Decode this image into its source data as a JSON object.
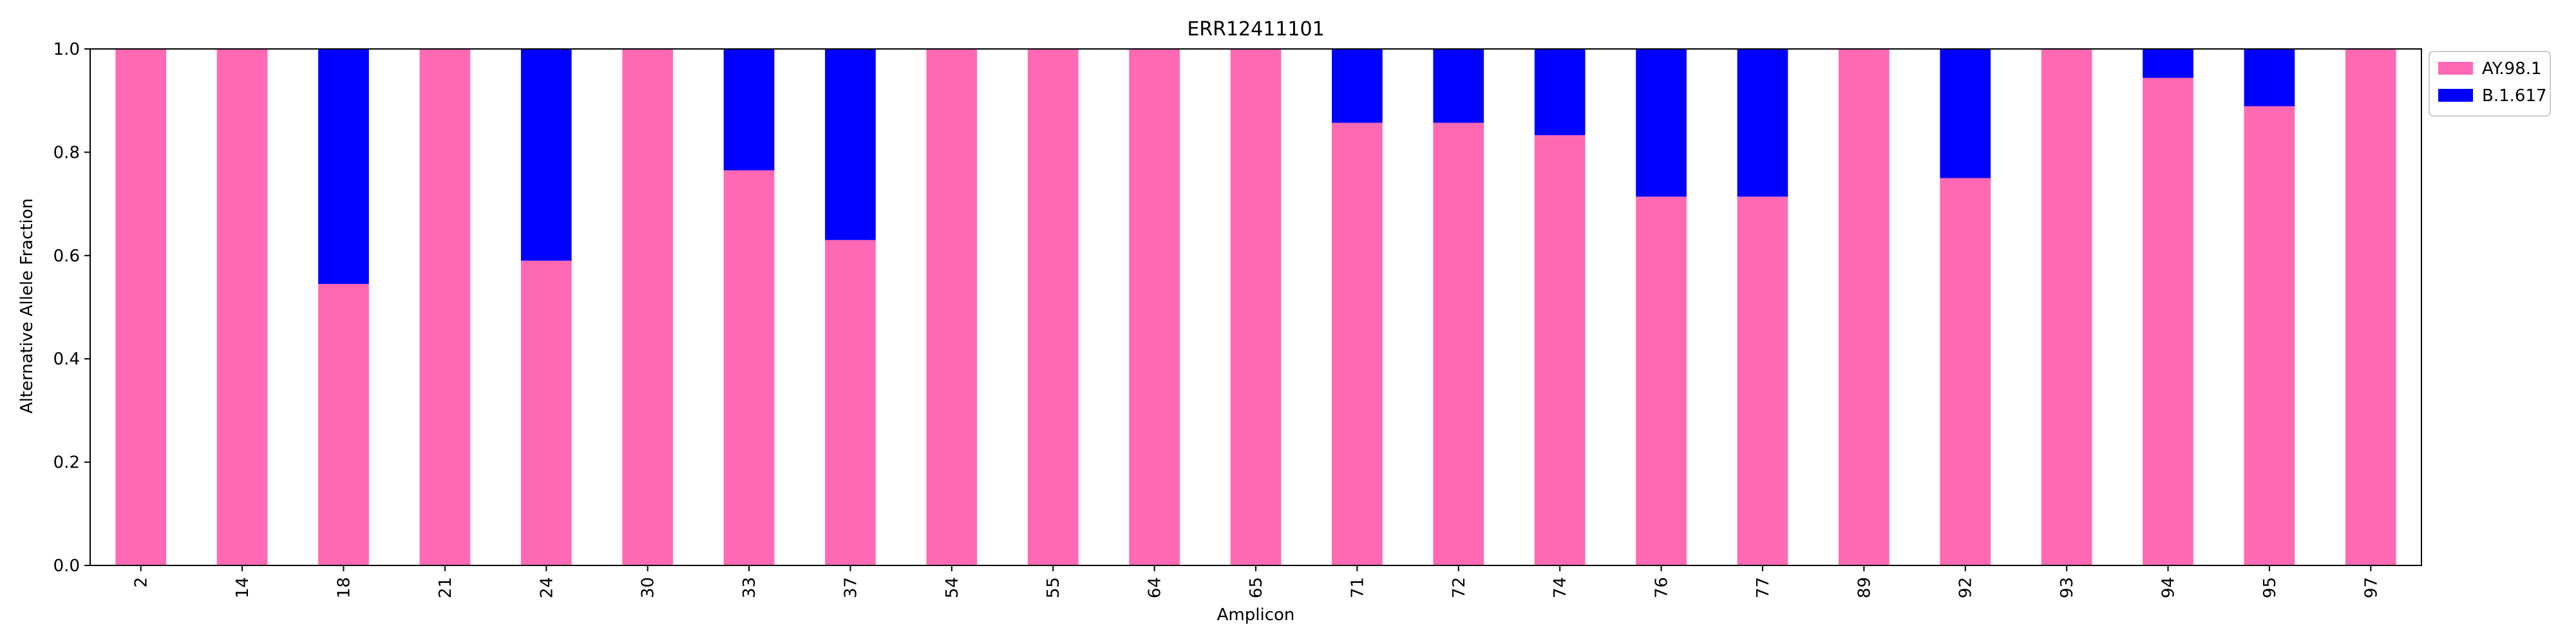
{
  "chart_data": {
    "type": "bar",
    "stacked": true,
    "title": "ERR12411101",
    "xlabel": "Amplicon",
    "ylabel": "Alternative Allele Fraction",
    "ylim": [
      0,
      1.0
    ],
    "yticks": [
      "0.0",
      "0.2",
      "0.4",
      "0.6",
      "0.8",
      "1.0"
    ],
    "grid": false,
    "legend_position": "outside-top-right",
    "categories": [
      "2",
      "14",
      "18",
      "21",
      "24",
      "30",
      "33",
      "37",
      "54",
      "55",
      "64",
      "65",
      "71",
      "72",
      "74",
      "76",
      "77",
      "89",
      "92",
      "93",
      "94",
      "95",
      "97"
    ],
    "series": [
      {
        "name": "AY.98.1",
        "color": "#ff69b4",
        "values": [
          1.0,
          1.0,
          0.545,
          1.0,
          0.59,
          1.0,
          0.765,
          0.63,
          1.0,
          1.0,
          1.0,
          1.0,
          0.857,
          0.857,
          0.833,
          0.714,
          0.714,
          1.0,
          0.75,
          1.0,
          0.944,
          0.889,
          1.0
        ]
      },
      {
        "name": "B.1.617",
        "color": "#0000ff",
        "values": [
          0.0,
          0.0,
          0.455,
          0.0,
          0.41,
          0.0,
          0.235,
          0.37,
          0.0,
          0.0,
          0.0,
          0.0,
          0.143,
          0.143,
          0.167,
          0.286,
          0.286,
          0.0,
          0.25,
          0.0,
          0.056,
          0.111,
          0.0
        ]
      }
    ]
  }
}
